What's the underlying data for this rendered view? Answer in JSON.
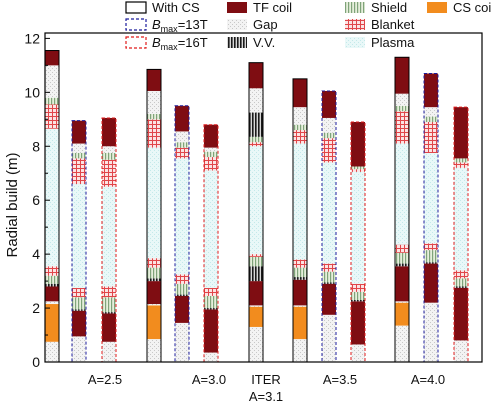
{
  "chart_data": {
    "type": "bar",
    "subtype": "stacked",
    "ylabel": "Radial build (m)",
    "ylim": [
      0,
      12.2
    ],
    "yticks": [
      0,
      2,
      4,
      6,
      8,
      10,
      12
    ],
    "grid": false,
    "legend_placement": "top",
    "legend": [
      {
        "key": "with_cs",
        "label": "With CS",
        "style": "outline-black"
      },
      {
        "key": "bmax13",
        "label_prefix": "B",
        "label_sub": "max",
        "label_suffix": "=13T",
        "style": "outline-blue-dashed"
      },
      {
        "key": "bmax16",
        "label_prefix": "B",
        "label_sub": "max",
        "label_suffix": "=16T",
        "style": "outline-red-dashed"
      },
      {
        "key": "tf_coil",
        "label": "TF coil",
        "color": "#7f0d12"
      },
      {
        "key": "gap",
        "label": "Gap",
        "color": "#ececec"
      },
      {
        "key": "vv",
        "label": "V.V.",
        "color": "#222222"
      },
      {
        "key": "shield",
        "label": "Shield",
        "color": "#a9c39a"
      },
      {
        "key": "blanket",
        "label": "Blanket",
        "color": "#e86a6a"
      },
      {
        "key": "plasma",
        "label": "Plasma",
        "color": "#ddf3f3"
      },
      {
        "key": "cs_coil",
        "label": "CS coil",
        "color": "#f28c1e"
      }
    ],
    "groups": [
      {
        "label": "A=2.5",
        "bars": [
          "b1",
          "b2",
          "b3"
        ]
      },
      {
        "label": "A=3.0",
        "bars": [
          "b4",
          "b5",
          "b6"
        ]
      },
      {
        "label": "ITER",
        "label2": "A=3.1",
        "bars": [
          "b7"
        ]
      },
      {
        "label": "A=3.5",
        "bars": [
          "b8",
          "b9",
          "b10"
        ]
      },
      {
        "label": "A=4.0",
        "bars": [
          "b11",
          "b12",
          "b13"
        ]
      }
    ],
    "bars": [
      {
        "id": "b1",
        "outline": "with_cs",
        "layers": [
          {
            "c": "gap",
            "v": 0.75
          },
          {
            "c": "cs_coil",
            "v": 1.4
          },
          {
            "c": "gap",
            "v": 0.1
          },
          {
            "c": "tf_coil",
            "v": 0.55
          },
          {
            "c": "vv",
            "v": 0.1
          },
          {
            "c": "shield",
            "v": 0.3
          },
          {
            "c": "blanket",
            "v": 0.35
          },
          {
            "c": "plasma",
            "v": 5.1
          },
          {
            "c": "blanket",
            "v": 0.9
          },
          {
            "c": "shield",
            "v": 0.25
          },
          {
            "c": "gap",
            "v": 1.2
          },
          {
            "c": "tf_coil",
            "v": 0.55
          }
        ]
      },
      {
        "id": "b2",
        "outline": "bmax13",
        "layers": [
          {
            "c": "gap",
            "v": 0.95
          },
          {
            "c": "tf_coil",
            "v": 0.95
          },
          {
            "c": "vv",
            "v": 0.05
          },
          {
            "c": "shield",
            "v": 0.45
          },
          {
            "c": "blanket",
            "v": 0.35
          },
          {
            "c": "plasma",
            "v": 3.85
          },
          {
            "c": "blanket",
            "v": 0.95
          },
          {
            "c": "shield",
            "v": 0.2
          },
          {
            "c": "gap",
            "v": 0.35
          },
          {
            "c": "tf_coil",
            "v": 0.85
          }
        ]
      },
      {
        "id": "b3",
        "outline": "bmax16",
        "layers": [
          {
            "c": "gap",
            "v": 0.75
          },
          {
            "c": "tf_coil",
            "v": 1.05
          },
          {
            "c": "vv",
            "v": 0.05
          },
          {
            "c": "shield",
            "v": 0.55
          },
          {
            "c": "blanket",
            "v": 0.4
          },
          {
            "c": "plasma",
            "v": 3.7
          },
          {
            "c": "blanket",
            "v": 1.0
          },
          {
            "c": "shield",
            "v": 0.25
          },
          {
            "c": "gap",
            "v": 0.25
          },
          {
            "c": "tf_coil",
            "v": 1.05
          }
        ]
      },
      {
        "id": "b4",
        "outline": "with_cs",
        "layers": [
          {
            "c": "gap",
            "v": 0.85
          },
          {
            "c": "cs_coil",
            "v": 1.25
          },
          {
            "c": "gap",
            "v": 0.05
          },
          {
            "c": "tf_coil",
            "v": 0.85
          },
          {
            "c": "vv",
            "v": 0.1
          },
          {
            "c": "shield",
            "v": 0.4
          },
          {
            "c": "blanket",
            "v": 0.35
          },
          {
            "c": "plasma",
            "v": 4.1
          },
          {
            "c": "blanket",
            "v": 1.05
          },
          {
            "c": "shield",
            "v": 0.2
          },
          {
            "c": "gap",
            "v": 0.85
          },
          {
            "c": "tf_coil",
            "v": 0.8
          }
        ]
      },
      {
        "id": "b5",
        "outline": "bmax13",
        "layers": [
          {
            "c": "gap",
            "v": 1.45
          },
          {
            "c": "tf_coil",
            "v": 1.0
          },
          {
            "c": "vv",
            "v": 0.05
          },
          {
            "c": "shield",
            "v": 0.4
          },
          {
            "c": "blanket",
            "v": 0.35
          },
          {
            "c": "plasma",
            "v": 4.3
          },
          {
            "c": "blanket",
            "v": 0.4
          },
          {
            "c": "shield",
            "v": 0.2
          },
          {
            "c": "gap",
            "v": 0.4
          },
          {
            "c": "tf_coil",
            "v": 0.95
          }
        ]
      },
      {
        "id": "b6",
        "outline": "bmax16",
        "layers": [
          {
            "c": "gap",
            "v": 0.35
          },
          {
            "c": "tf_coil",
            "v": 1.6
          },
          {
            "c": "vv",
            "v": 0.05
          },
          {
            "c": "shield",
            "v": 0.45
          },
          {
            "c": "blanket",
            "v": 0.3
          },
          {
            "c": "plasma",
            "v": 4.35
          },
          {
            "c": "blanket",
            "v": 0.5
          },
          {
            "c": "shield",
            "v": 0.2
          },
          {
            "c": "gap",
            "v": 0.15
          },
          {
            "c": "tf_coil",
            "v": 0.85
          }
        ]
      },
      {
        "id": "b7",
        "outline": "with_cs",
        "layers": [
          {
            "c": "gap",
            "v": 1.3
          },
          {
            "c": "cs_coil",
            "v": 0.75
          },
          {
            "c": "gap",
            "v": 0.05
          },
          {
            "c": "tf_coil",
            "v": 0.9
          },
          {
            "c": "vv",
            "v": 0.55
          },
          {
            "c": "shield",
            "v": 0.35
          },
          {
            "c": "blanket",
            "v": 0.1
          },
          {
            "c": "plasma",
            "v": 4.0
          },
          {
            "c": "blanket",
            "v": 0.15
          },
          {
            "c": "shield",
            "v": 0.2
          },
          {
            "c": "vv",
            "v": 0.9
          },
          {
            "c": "gap",
            "v": 0.9
          },
          {
            "c": "tf_coil",
            "v": 0.95
          }
        ]
      },
      {
        "id": "b8",
        "outline": "with_cs",
        "layers": [
          {
            "c": "gap",
            "v": 0.85
          },
          {
            "c": "cs_coil",
            "v": 1.2
          },
          {
            "c": "gap",
            "v": 0.05
          },
          {
            "c": "tf_coil",
            "v": 0.95
          },
          {
            "c": "vv",
            "v": 0.1
          },
          {
            "c": "shield",
            "v": 0.35
          },
          {
            "c": "blanket",
            "v": 0.3
          },
          {
            "c": "plasma",
            "v": 4.3
          },
          {
            "c": "blanket",
            "v": 0.5
          },
          {
            "c": "shield",
            "v": 0.2
          },
          {
            "c": "gap",
            "v": 0.65
          },
          {
            "c": "tf_coil",
            "v": 1.05
          }
        ]
      },
      {
        "id": "b9",
        "outline": "bmax13",
        "layers": [
          {
            "c": "gap",
            "v": 1.75
          },
          {
            "c": "tf_coil",
            "v": 1.15
          },
          {
            "c": "vv",
            "v": 0.05
          },
          {
            "c": "shield",
            "v": 0.4
          },
          {
            "c": "blanket",
            "v": 0.3
          },
          {
            "c": "plasma",
            "v": 3.75
          },
          {
            "c": "blanket",
            "v": 0.9
          },
          {
            "c": "shield",
            "v": 0.2
          },
          {
            "c": "gap",
            "v": 0.55
          },
          {
            "c": "tf_coil",
            "v": 1.0
          }
        ]
      },
      {
        "id": "b10",
        "outline": "bmax16",
        "layers": [
          {
            "c": "gap",
            "v": 0.65
          },
          {
            "c": "tf_coil",
            "v": 1.6
          },
          {
            "c": "vv",
            "v": 0.05
          },
          {
            "c": "shield",
            "v": 0.3
          },
          {
            "c": "blanket",
            "v": 0.3
          },
          {
            "c": "plasma",
            "v": 4.15
          },
          {
            "c": "blanket",
            "v": 0.1
          },
          {
            "c": "shield",
            "v": 0.1
          },
          {
            "c": "tf_coil",
            "v": 1.65
          }
        ]
      },
      {
        "id": "b11",
        "outline": "with_cs",
        "layers": [
          {
            "c": "gap",
            "v": 1.35
          },
          {
            "c": "cs_coil",
            "v": 0.85
          },
          {
            "c": "gap",
            "v": 0.05
          },
          {
            "c": "tf_coil",
            "v": 1.3
          },
          {
            "c": "vv",
            "v": 0.1
          },
          {
            "c": "shield",
            "v": 0.4
          },
          {
            "c": "blanket",
            "v": 0.3
          },
          {
            "c": "plasma",
            "v": 3.75
          },
          {
            "c": "blanket",
            "v": 1.2
          },
          {
            "c": "shield",
            "v": 0.2
          },
          {
            "c": "gap",
            "v": 0.45
          },
          {
            "c": "tf_coil",
            "v": 1.35
          }
        ]
      },
      {
        "id": "b12",
        "outline": "bmax13",
        "layers": [
          {
            "c": "gap",
            "v": 2.2
          },
          {
            "c": "tf_coil",
            "v": 1.45
          },
          {
            "c": "vv",
            "v": 0.05
          },
          {
            "c": "shield",
            "v": 0.45
          },
          {
            "c": "blanket",
            "v": 0.25
          },
          {
            "c": "plasma",
            "v": 3.35
          },
          {
            "c": "blanket",
            "v": 1.15
          },
          {
            "c": "shield",
            "v": 0.2
          },
          {
            "c": "gap",
            "v": 0.35
          },
          {
            "c": "tf_coil",
            "v": 1.25
          }
        ]
      },
      {
        "id": "b13",
        "outline": "bmax16",
        "layers": [
          {
            "c": "gap",
            "v": 0.8
          },
          {
            "c": "tf_coil",
            "v": 1.95
          },
          {
            "c": "vv",
            "v": 0.05
          },
          {
            "c": "shield",
            "v": 0.3
          },
          {
            "c": "blanket",
            "v": 0.3
          },
          {
            "c": "plasma",
            "v": 3.8
          },
          {
            "c": "blanket",
            "v": 0.2
          },
          {
            "c": "shield",
            "v": 0.15
          },
          {
            "c": "tf_coil",
            "v": 1.9
          }
        ]
      }
    ]
  }
}
